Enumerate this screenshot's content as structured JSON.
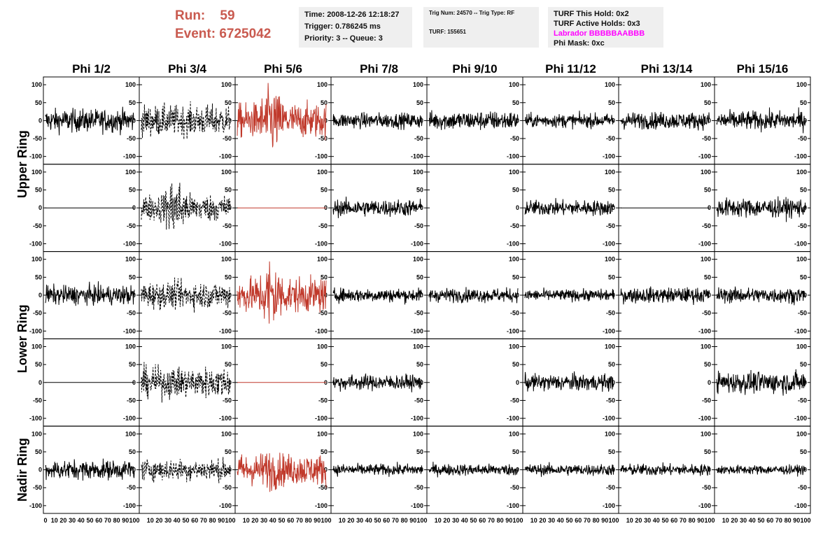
{
  "header": {
    "run_label": "Run:",
    "run_value": "59",
    "event_label": "Event:",
    "event_value": "6725042",
    "run_color": "#c95a4f"
  },
  "info": {
    "time": "Time: 2008-12-26 12:18:27",
    "trigger": "Trigger: 0.786245 ms",
    "priority": "Priority: 3 -- Queue: 3",
    "trig_num": "Trig Num: 24570 -- Trig Type: RF",
    "turf": "TURF: 155651",
    "turf_this_hold": "TURF This Hold: 0x2",
    "turf_active_holds": "TURF Active Holds: 0x3",
    "labrador": "Labrador BBBBBAABBB",
    "labrador_color": "#ff00ff",
    "phi_mask": "Phi Mask: 0xc"
  },
  "chart_data": {
    "type": "line",
    "columns": [
      "Phi 1/2",
      "Phi 3/4",
      "Phi 5/6",
      "Phi 7/8",
      "Phi 9/10",
      "Phi 11/12",
      "Phi 13/14",
      "Phi 15/16"
    ],
    "ring_labels": [
      "Upper Ring",
      "Lower Ring",
      "Nadir Ring"
    ],
    "rows": [
      {
        "ring": "Upper Ring",
        "cells": [
          {
            "amp": 30,
            "style": "solid",
            "color": "#000000"
          },
          {
            "amp": 40,
            "style": "dashed",
            "color": "#000000"
          },
          {
            "amp": 45,
            "style": "solid",
            "color": "#c0392b",
            "burst": true,
            "peak": 95
          },
          {
            "amp": 20,
            "style": "solid",
            "color": "#000000"
          },
          {
            "amp": 25,
            "style": "solid",
            "color": "#000000"
          },
          {
            "amp": 18,
            "style": "solid",
            "color": "#000000"
          },
          {
            "amp": 22,
            "style": "solid",
            "color": "#000000"
          },
          {
            "amp": 25,
            "style": "solid",
            "color": "#000000"
          }
        ]
      },
      {
        "ring": "Upper Ring",
        "cells": [
          {
            "amp": 0,
            "style": "solid",
            "color": "#000000"
          },
          {
            "amp": 35,
            "style": "dashed",
            "color": "#000000",
            "burst": true,
            "peak": 85
          },
          {
            "amp": 0,
            "style": "solid",
            "color": "#c0392b"
          },
          {
            "amp": 22,
            "style": "solid",
            "color": "#000000"
          },
          {
            "amp": 0,
            "style": "solid",
            "color": "#000000",
            "hidden": true
          },
          {
            "amp": 20,
            "style": "solid",
            "color": "#000000"
          },
          {
            "amp": 0,
            "style": "solid",
            "color": "#000000"
          },
          {
            "amp": 25,
            "style": "solid",
            "color": "#000000"
          }
        ]
      },
      {
        "ring": "Lower Ring",
        "cells": [
          {
            "amp": 25,
            "style": "solid",
            "color": "#000000"
          },
          {
            "amp": 35,
            "style": "dashed",
            "color": "#000000"
          },
          {
            "amp": 45,
            "style": "solid",
            "color": "#c0392b",
            "burst": true,
            "peak": 105
          },
          {
            "amp": 18,
            "style": "solid",
            "color": "#000000"
          },
          {
            "amp": 18,
            "style": "solid",
            "color": "#000000"
          },
          {
            "amp": 15,
            "style": "solid",
            "color": "#000000"
          },
          {
            "amp": 20,
            "style": "solid",
            "color": "#000000"
          },
          {
            "amp": 20,
            "style": "solid",
            "color": "#000000"
          }
        ]
      },
      {
        "ring": "Lower Ring",
        "cells": [
          {
            "amp": 0,
            "style": "solid",
            "color": "#000000"
          },
          {
            "amp": 40,
            "style": "dashed",
            "color": "#000000"
          },
          {
            "amp": 0,
            "style": "solid",
            "color": "#c0392b"
          },
          {
            "amp": 20,
            "style": "solid",
            "color": "#000000"
          },
          {
            "amp": 0,
            "style": "solid",
            "color": "#000000",
            "hidden": true
          },
          {
            "amp": 22,
            "style": "solid",
            "color": "#000000"
          },
          {
            "amp": 0,
            "style": "solid",
            "color": "#000000",
            "hidden": true
          },
          {
            "amp": 28,
            "style": "solid",
            "color": "#000000"
          }
        ]
      },
      {
        "ring": "Nadir Ring",
        "cells": [
          {
            "amp": 25,
            "style": "solid",
            "color": "#000000"
          },
          {
            "amp": 28,
            "style": "dashed",
            "color": "#000000"
          },
          {
            "amp": 40,
            "style": "solid",
            "color": "#c0392b",
            "burst": true,
            "peak": 55
          },
          {
            "amp": 15,
            "style": "solid",
            "color": "#000000"
          },
          {
            "amp": 15,
            "style": "solid",
            "color": "#000000"
          },
          {
            "amp": 15,
            "style": "solid",
            "color": "#000000"
          },
          {
            "amp": 15,
            "style": "solid",
            "color": "#000000"
          },
          {
            "amp": 12,
            "style": "solid",
            "color": "#000000"
          }
        ]
      }
    ],
    "x_range": [
      0,
      100
    ],
    "y_range": [
      -110,
      110
    ],
    "y_ticks": [
      -100,
      -50,
      0,
      50,
      100
    ],
    "x_ticks": [
      0,
      10,
      20,
      30,
      40,
      50,
      60,
      70,
      80,
      90,
      100
    ]
  }
}
